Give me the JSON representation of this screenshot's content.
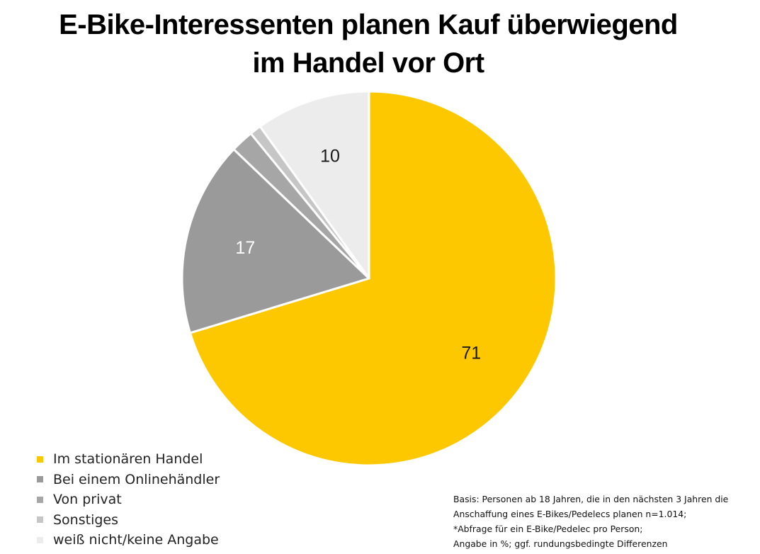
{
  "title": {
    "line1": "E-Bike-Interessenten planen Kauf überwiegend",
    "line2": "im Handel vor Ort"
  },
  "chart_data": {
    "type": "pie",
    "title": "E-Bike-Interessenten planen Kauf überwiegend im Handel vor Ort",
    "unit": "%",
    "slices": [
      {
        "label": "Im stationären Handel",
        "value": 71,
        "shown_label": "71",
        "color": "#fdc800",
        "label_color": "#1a1a1a"
      },
      {
        "label": "Bei einem Onlinehändler",
        "value": 17,
        "shown_label": "17",
        "color": "#9a9a9a",
        "label_color": "#ffffff"
      },
      {
        "label": "Von privat",
        "value": 2,
        "shown_label": "",
        "color": "#a6a6a6",
        "label_color": "#ffffff"
      },
      {
        "label": "Sonstiges",
        "value": 1,
        "shown_label": "",
        "color": "#c6c6c6",
        "label_color": "#ffffff"
      },
      {
        "label": "weiß nicht/keine Angabe",
        "value": 10,
        "shown_label": "10",
        "color": "#ececec",
        "label_color": "#1a1a1a"
      }
    ],
    "legend_position": "bottom-left"
  },
  "footnote": {
    "line1": "Basis: Personen ab 18 Jahren, die in den nächsten 3 Jahren die",
    "line2": "Anschaffung eines E-Bikes/Pedelecs planen n=1.014;",
    "line3": "*Abfrage für ein E-Bike/Pedelec pro Person;",
    "line4": "Angabe in %; ggf. rundungsbedingte Differenzen"
  }
}
